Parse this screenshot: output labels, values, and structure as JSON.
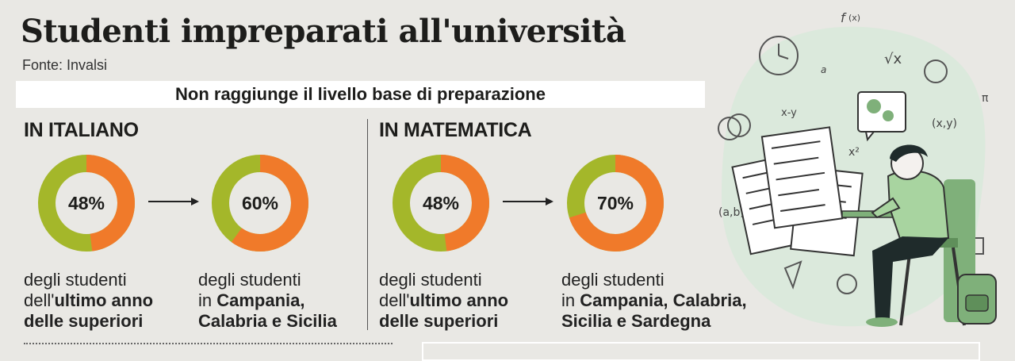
{
  "header": {
    "title": "Studenti impreparati all'università",
    "source": "Fonte: Invalsi"
  },
  "banner": "Non raggiunge il livello base di preparazione",
  "colors": {
    "primary": "#f07a2a",
    "secondary": "#a4b72a",
    "background": "#e9e8e4"
  },
  "chart_data": [
    {
      "type": "pie",
      "title": "IN ITALIANO",
      "panels": [
        {
          "value": 48,
          "label": "48%",
          "caption": [
            "degli studenti",
            "dell'",
            "ultimo anno",
            "delle superiori"
          ]
        },
        {
          "value": 60,
          "label": "60%",
          "caption": [
            "degli studenti",
            "in ",
            "Campania,",
            "Calabria e Sicilia"
          ]
        }
      ]
    },
    {
      "type": "pie",
      "title": "IN MATEMATICA",
      "panels": [
        {
          "value": 48,
          "label": "48%",
          "caption": [
            "degli studenti",
            "dell'",
            "ultimo anno",
            "delle superiori"
          ]
        },
        {
          "value": 70,
          "label": "70%",
          "caption": [
            "degli studenti",
            "in ",
            "Campania, Calabria,",
            "Sicilia e Sardegna"
          ]
        }
      ]
    }
  ]
}
